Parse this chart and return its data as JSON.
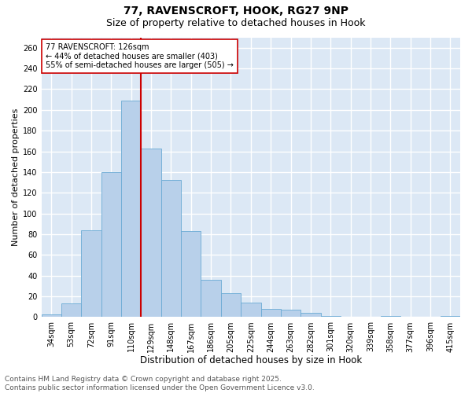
{
  "title_line1": "77, RAVENSCROFT, HOOK, RG27 9NP",
  "title_line2": "Size of property relative to detached houses in Hook",
  "xlabel": "Distribution of detached houses by size in Hook",
  "ylabel": "Number of detached properties",
  "categories": [
    "34sqm",
    "53sqm",
    "72sqm",
    "91sqm",
    "110sqm",
    "129sqm",
    "148sqm",
    "167sqm",
    "186sqm",
    "205sqm",
    "225sqm",
    "244sqm",
    "263sqm",
    "282sqm",
    "301sqm",
    "320sqm",
    "339sqm",
    "358sqm",
    "377sqm",
    "396sqm",
    "415sqm"
  ],
  "values": [
    3,
    13,
    84,
    140,
    209,
    163,
    132,
    83,
    36,
    23,
    14,
    8,
    7,
    4,
    1,
    0,
    0,
    1,
    0,
    0,
    1
  ],
  "bar_color": "#b8d0ea",
  "bar_edge_color": "#6aaad4",
  "vline_color": "#cc0000",
  "annotation_text": "77 RAVENSCROFT: 126sqm\n← 44% of detached houses are smaller (403)\n55% of semi-detached houses are larger (505) →",
  "annotation_box_color": "white",
  "annotation_box_edge_color": "#cc0000",
  "ylim": [
    0,
    270
  ],
  "yticks": [
    0,
    20,
    40,
    60,
    80,
    100,
    120,
    140,
    160,
    180,
    200,
    220,
    240,
    260
  ],
  "background_color": "#dce8f5",
  "grid_color": "white",
  "footer_text": "Contains HM Land Registry data © Crown copyright and database right 2025.\nContains public sector information licensed under the Open Government Licence v3.0.",
  "title_fontsize": 10,
  "subtitle_fontsize": 9,
  "xlabel_fontsize": 8.5,
  "ylabel_fontsize": 8,
  "tick_fontsize": 7,
  "annotation_fontsize": 7,
  "footer_fontsize": 6.5
}
